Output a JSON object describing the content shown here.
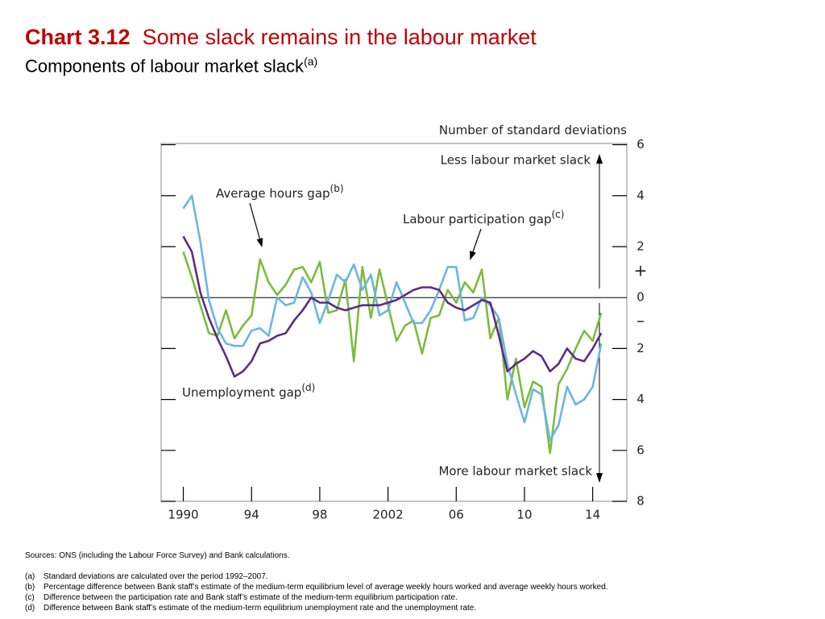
{
  "chart_data": {
    "type": "line",
    "chart_label": "Chart 3.12",
    "title": "Some slack remains in the labour market",
    "subtitle": "Components of labour market slack",
    "subtitle_note": "(a)",
    "y_axis_label": "Number of standard deviations",
    "upper_annotation": "Less labour market slack",
    "lower_annotation": "More labour market slack",
    "plus_sign": "+",
    "minus_sign": "–",
    "x": [
      1990,
      1990.5,
      1991,
      1991.5,
      1992,
      1992.5,
      1993,
      1993.5,
      1994,
      1994.5,
      1995,
      1995.5,
      1996,
      1996.5,
      1997,
      1997.5,
      1998,
      1998.5,
      1999,
      1999.5,
      2000,
      2000.5,
      2001,
      2001.5,
      2002,
      2002.5,
      2003,
      2003.5,
      2004,
      2004.5,
      2005,
      2005.5,
      2006,
      2006.5,
      2007,
      2007.5,
      2008,
      2008.5,
      2009,
      2009.5,
      2010,
      2010.5,
      2011,
      2011.5,
      2012,
      2012.5,
      2013,
      2013.5,
      2014,
      2014.5
    ],
    "series": [
      {
        "name": "Average hours gap",
        "note": "(b)",
        "color": "#6ab7e0",
        "values": [
          3.5,
          4.0,
          2.2,
          -0.1,
          -1.2,
          -1.8,
          -1.9,
          -1.9,
          -1.3,
          -1.2,
          -1.5,
          0.0,
          -0.3,
          -0.2,
          0.8,
          0.2,
          -1.0,
          -0.1,
          0.9,
          0.6,
          1.3,
          0.3,
          0.9,
          -0.7,
          -0.5,
          0.6,
          -0.2,
          -1.0,
          -1.0,
          -0.5,
          0.3,
          1.2,
          1.2,
          -0.9,
          -0.8,
          0.0,
          -0.3,
          -0.8,
          -2.6,
          -3.8,
          -4.9,
          -3.6,
          -3.8,
          -5.6,
          -5.0,
          -3.5,
          -4.2,
          -4.0,
          -3.5,
          -1.8
        ]
      },
      {
        "name": "Labour participation gap",
        "note": "(c)",
        "color": "#7dbb3c",
        "values": [
          1.8,
          0.8,
          -0.3,
          -1.4,
          -1.5,
          -0.5,
          -1.6,
          -1.1,
          -0.7,
          1.5,
          0.6,
          0.1,
          0.5,
          1.1,
          1.2,
          0.6,
          1.4,
          -0.6,
          -0.5,
          0.7,
          -2.5,
          1.2,
          -0.8,
          1.1,
          -0.3,
          -1.7,
          -1.1,
          -0.9,
          -2.2,
          -0.8,
          -0.7,
          0.3,
          -0.2,
          0.6,
          0.2,
          1.1,
          -1.6,
          -0.8,
          -4.0,
          -2.4,
          -4.3,
          -3.3,
          -3.5,
          -6.1,
          -3.4,
          -2.8,
          -2.0,
          -1.3,
          -1.7,
          -0.6
        ]
      },
      {
        "name": "Unemployment gap",
        "note": "(d)",
        "color": "#5b2d83",
        "values": [
          2.4,
          1.8,
          0.2,
          -0.8,
          -1.6,
          -2.3,
          -3.1,
          -2.9,
          -2.5,
          -1.8,
          -1.7,
          -1.5,
          -1.4,
          -0.9,
          -0.5,
          0.0,
          -0.2,
          -0.2,
          -0.4,
          -0.5,
          -0.4,
          -0.3,
          -0.3,
          -0.3,
          -0.2,
          -0.1,
          0.1,
          0.3,
          0.4,
          0.4,
          0.3,
          -0.2,
          -0.4,
          -0.5,
          -0.3,
          -0.1,
          -0.2,
          -1.5,
          -2.9,
          -2.6,
          -2.4,
          -2.1,
          -2.3,
          -2.9,
          -2.6,
          -2.0,
          -2.4,
          -2.5,
          -2.0,
          -1.4
        ]
      }
    ],
    "xlim": [
      1988.7,
      2016
    ],
    "xticks": [
      1990,
      {
        "value": 1994,
        "label": "94"
      },
      {
        "value": 1998,
        "label": "98"
      },
      2002,
      {
        "value": 2006,
        "label": "06"
      },
      {
        "value": 2010,
        "label": "10"
      },
      {
        "value": 2014,
        "label": "14"
      }
    ],
    "ylim": [
      -8,
      6.05
    ],
    "yticks": [
      6,
      4,
      2,
      0,
      {
        "value": -2,
        "label": "2"
      },
      {
        "value": -4,
        "label": "4"
      },
      {
        "value": -6,
        "label": "6"
      },
      {
        "value": -8,
        "label": "8"
      }
    ]
  },
  "sources": "Sources:  ONS (including the Labour Force Survey) and Bank calculations.",
  "footnotes": [
    {
      "label": "(a)",
      "text": "Standard deviations are calculated over the period 1992–2007."
    },
    {
      "label": "(b)",
      "text": "Percentage difference between Bank staff’s estimate of the medium-term equilibrium level of average weekly hours worked and average weekly hours worked."
    },
    {
      "label": "(c)",
      "text": "Difference between the participation rate and Bank staff’s estimate of the medium-term equilibrium participation rate."
    },
    {
      "label": "(d)",
      "text": "Difference between Bank staff’s estimate of the medium-term equilibrium unemployment rate and the unemployment rate."
    }
  ]
}
